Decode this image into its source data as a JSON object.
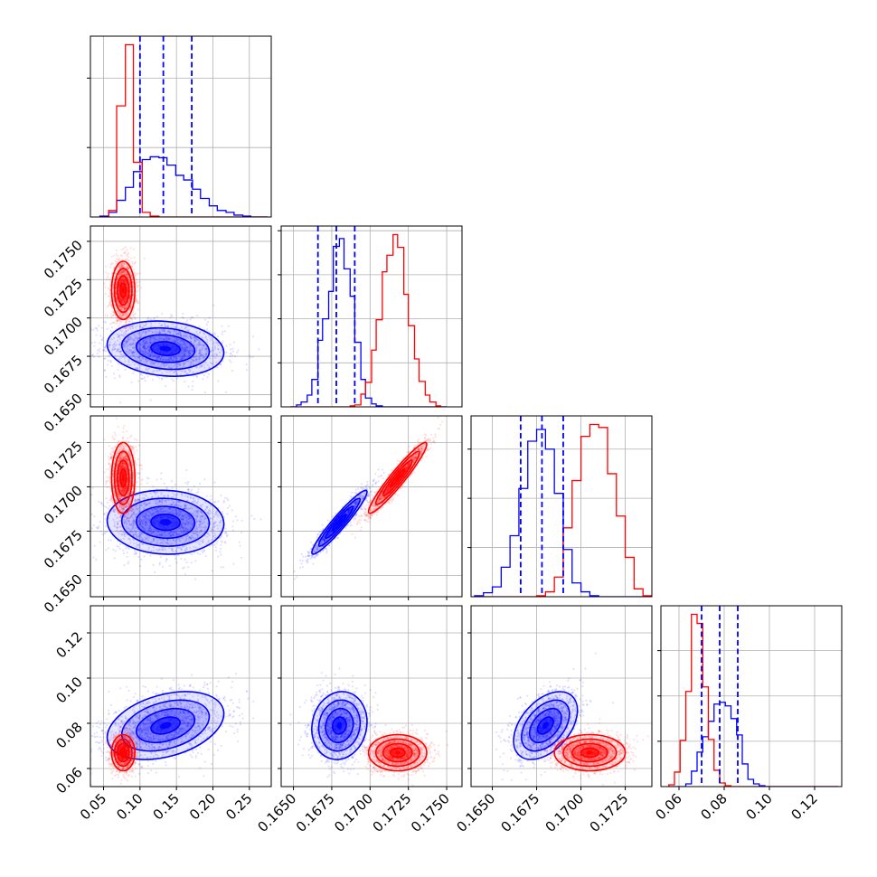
{
  "chart_data": {
    "type": "corner",
    "params": [
      {
        "id": "p0",
        "range": [
          0.032,
          0.28
        ],
        "ticks": [
          0.05,
          0.1,
          0.15,
          0.2,
          0.25
        ],
        "tick_labels": [
          "0.05",
          "0.10",
          "0.15",
          "0.20",
          "0.25"
        ]
      },
      {
        "id": "p1",
        "range": [
          0.1642,
          0.176
        ],
        "ticks": [
          0.165,
          0.1675,
          0.17,
          0.1725,
          0.175
        ],
        "tick_labels": [
          "0.1650",
          "0.1675",
          "0.1700",
          "0.1725",
          "0.1750"
        ]
      },
      {
        "id": "p2",
        "range": [
          0.1638,
          0.174
        ],
        "ticks": [
          0.165,
          0.1675,
          0.17,
          0.1725
        ],
        "tick_labels": [
          "0.1650",
          "0.1675",
          "0.1700",
          "0.1725"
        ]
      },
      {
        "id": "p3",
        "range": [
          0.052,
          0.132
        ],
        "ticks": [
          0.06,
          0.08,
          0.1,
          0.12
        ],
        "tick_labels": [
          "0.06",
          "0.08",
          "0.10",
          "0.12"
        ]
      }
    ],
    "series": [
      {
        "color": "#0000ff",
        "mean": [
          0.135,
          0.168,
          0.168,
          0.079
        ],
        "sd": [
          0.04,
          0.0009,
          0.0009,
          0.0075
        ],
        "corr": {
          "0-1": -0.15,
          "0-2": -0.05,
          "0-3": 0.35,
          "1-2": 0.95,
          "1-3": 0.1,
          "2-3": 0.45
        }
      },
      {
        "color": "#ff0000",
        "mean": [
          0.077,
          0.1718,
          0.1705,
          0.067
        ],
        "sd": [
          0.008,
          0.00095,
          0.001,
          0.004
        ],
        "corr": {
          "0-1": 0.0,
          "0-2": 0.0,
          "0-3": 0.0,
          "1-2": 0.95,
          "1-3": 0.0,
          "2-3": 0.0
        }
      }
    ],
    "quantile_lines": {
      "color": "#0000ff",
      "values": [
        [
          0.1,
          0.132,
          0.171
        ],
        [
          0.1666,
          0.1678,
          0.169
        ],
        [
          0.1666,
          0.1678,
          0.169
        ],
        [
          0.07,
          0.078,
          0.086
        ]
      ]
    },
    "histograms": [
      {
        "param": 0,
        "edges": [
          0.045,
          0.057,
          0.068,
          0.08,
          0.091,
          0.103,
          0.114,
          0.126,
          0.137,
          0.149,
          0.16,
          0.172,
          0.183,
          0.195,
          0.206,
          0.218,
          0.229,
          0.241,
          0.252,
          0.264,
          0.275
        ],
        "blue": [
          1,
          5,
          18,
          32,
          49,
          62,
          65,
          64,
          56,
          45,
          40,
          30,
          20,
          12,
          7,
          5,
          2,
          1,
          0,
          0
        ],
        "red": [
          0,
          7,
          120,
          186,
          59,
          5,
          1,
          0,
          0,
          0,
          0,
          0,
          0,
          0,
          0,
          0,
          0,
          0,
          0,
          0
        ]
      },
      {
        "param": 1,
        "edges": [
          0.1648,
          0.1652,
          0.1655,
          0.1659,
          0.1662,
          0.1666,
          0.1669,
          0.1673,
          0.1676,
          0.168,
          0.1683,
          0.1687,
          0.169,
          0.1694,
          0.1697,
          0.1701,
          0.1704,
          0.1708,
          0.1711,
          0.1715,
          0.1718,
          0.1722,
          0.1725,
          0.1729,
          0.1732,
          0.1736,
          0.1739,
          0.1743,
          0.1746,
          0.175
        ],
        "blue": [
          0,
          2,
          5,
          12,
          28,
          68,
          90,
          118,
          164,
          172,
          141,
          113,
          66,
          28,
          9,
          3,
          1,
          0,
          0,
          0,
          0,
          0,
          0,
          0,
          0,
          0,
          0,
          0,
          0
        ],
        "red": [
          0,
          0,
          0,
          0,
          0,
          0,
          0,
          0,
          0,
          0,
          0,
          1,
          2,
          13,
          25,
          58,
          89,
          138,
          155,
          176,
          163,
          115,
          83,
          49,
          26,
          12,
          5,
          1,
          0
        ]
      },
      {
        "param": 2,
        "edges": [
          0.164,
          0.1645,
          0.165,
          0.1655,
          0.166,
          0.1665,
          0.167,
          0.1675,
          0.168,
          0.1685,
          0.169,
          0.1695,
          0.17,
          0.1705,
          0.171,
          0.1715,
          0.172,
          0.1725,
          0.173,
          0.1735,
          0.174
        ],
        "blue": [
          1,
          4,
          10,
          30,
          62,
          110,
          158,
          170,
          150,
          105,
          48,
          14,
          5,
          1,
          0,
          0,
          0,
          0,
          0,
          0
        ],
        "red": [
          0,
          0,
          0,
          0,
          0,
          0,
          0,
          1,
          5,
          20,
          70,
          118,
          163,
          175,
          172,
          125,
          82,
          40,
          8,
          1
        ]
      },
      {
        "param": 3,
        "edges": [
          0.0555,
          0.058,
          0.0605,
          0.063,
          0.0655,
          0.068,
          0.0705,
          0.073,
          0.0755,
          0.078,
          0.0805,
          0.083,
          0.0855,
          0.088,
          0.0905,
          0.093,
          0.0955,
          0.098,
          0.1005,
          0.103,
          0.1055,
          0.108,
          0.1105,
          0.113,
          0.1155,
          0.118,
          0.1205,
          0.123,
          0.1255,
          0.128,
          0.1305
        ],
        "blue": [
          0,
          0,
          0,
          3,
          17,
          38,
          55,
          72,
          91,
          93,
          89,
          75,
          57,
          25,
          8,
          3,
          1,
          0,
          0,
          0,
          0,
          0,
          0,
          0,
          0,
          0,
          0,
          0,
          0,
          0
        ],
        "red": [
          2,
          16,
          51,
          105,
          190,
          180,
          110,
          52,
          18,
          4,
          1,
          0,
          0,
          0,
          0,
          0,
          0,
          0,
          0,
          0,
          0,
          0,
          0,
          0,
          0,
          0,
          0,
          0,
          0,
          0
        ]
      }
    ],
    "grid": true,
    "scatter_points_per_series": 1600,
    "contour_levels": [
      "0.5 sigma",
      "1 sigma",
      "1.5 sigma",
      "2 sigma"
    ]
  }
}
